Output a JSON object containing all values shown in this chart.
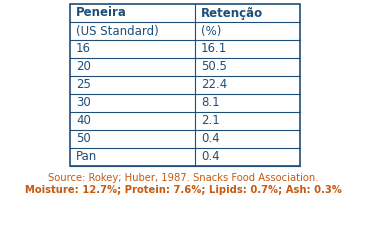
{
  "col1_header": "Peneira",
  "col2_header": "Retenção",
  "col1_subheader": "(US Standard)",
  "col2_subheader": "(%)",
  "rows": [
    [
      "16",
      "16.1"
    ],
    [
      "20",
      "50.5"
    ],
    [
      "25",
      "22.4"
    ],
    [
      "30",
      "8.1"
    ],
    [
      "40",
      "2.1"
    ],
    [
      "50",
      "0.4"
    ],
    [
      "Pan",
      "0.4"
    ]
  ],
  "footer_line1": "Source: Rokey; Huber, 1987. Snacks Food Association.",
  "footer_line2": "Moisture: 12.7%; Protein: 7.6%; Lipids: 0.7%; Ash: 0.3%",
  "header_text_color": "#1f4e79",
  "body_text_color": "#1f4e79",
  "footer_color": "#c55a11",
  "background": "#ffffff",
  "border_color": "#1f4e79",
  "header_fontsize": 8.5,
  "body_fontsize": 8.5,
  "footer_fontsize": 7.2
}
